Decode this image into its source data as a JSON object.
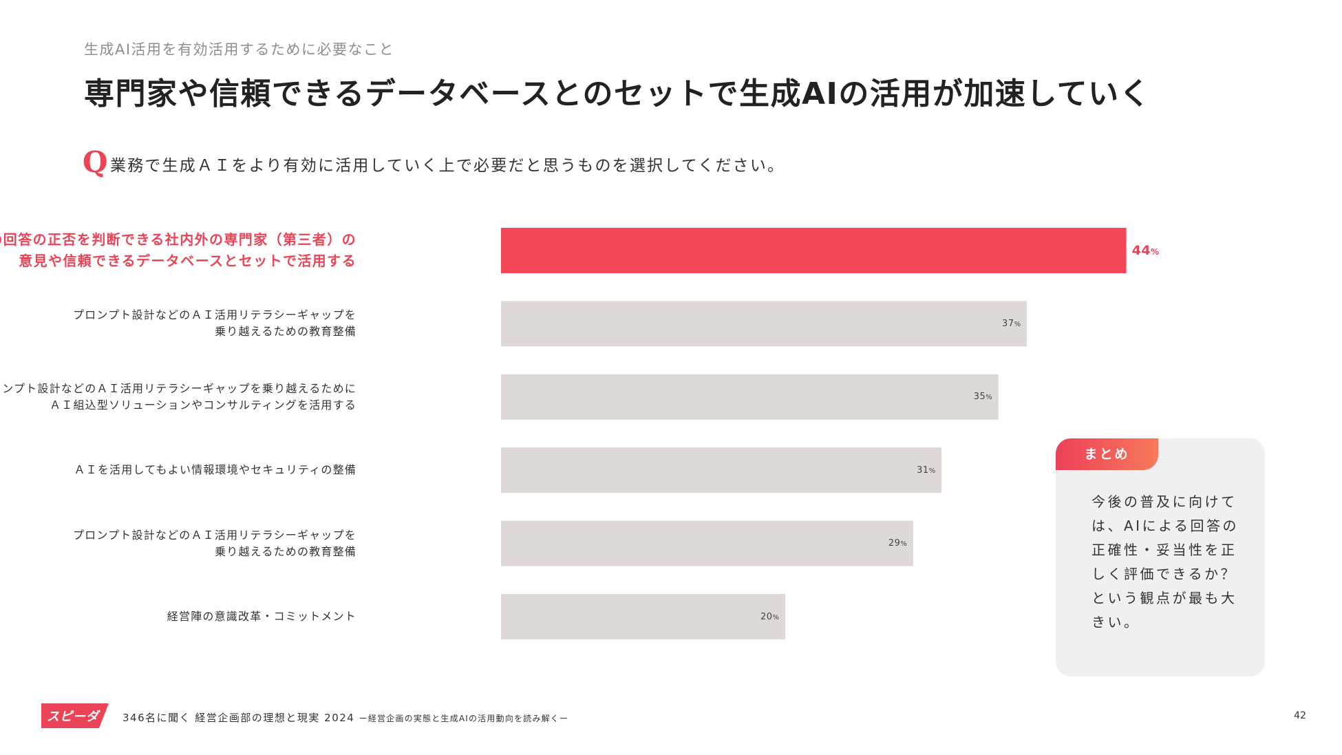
{
  "header": {
    "kicker": "生成AI活用を有効活用するために必要なこと",
    "title": "専門家や信頼できるデータベースとのセットで生成AIの活用が加速していく"
  },
  "question": {
    "mark": "Q",
    "text": "業務で生成ＡＩをより有効に活用していく上で必要だと思うものを選択してください。"
  },
  "chart_data": {
    "type": "bar",
    "orientation": "horizontal",
    "value_unit": "%",
    "highlight_index": 0,
    "colors": {
      "highlight": "#f44858",
      "default": "#ded9d7"
    },
    "xlim": [
      0,
      100
    ],
    "grid": false,
    "categories": [
      [
        "ＡＩの回答の正否を判断できる社内外の専門家（第三者）の",
        "意見や信頼できるデータベースとセットで活用する"
      ],
      [
        "プロンプト設計などのＡＩ活用リテラシーギャップを",
        "乗り越えるための教育整備"
      ],
      [
        "プロンプト設計などのＡＩ活用リテラシーギャップを乗り越えるために",
        "ＡＩ組込型ソリューションやコンサルティングを活用する"
      ],
      [
        "ＡＩを活用してもよい情報環境やセキュリティの整備"
      ],
      [
        "プロンプト設計などのＡＩ活用リテラシーギャップを",
        "乗り越えるための教育整備"
      ],
      [
        "経営陣の意識改革・コミットメント"
      ]
    ],
    "values": [
      44,
      37,
      35,
      31,
      29,
      20
    ]
  },
  "summary": {
    "label": "まとめ",
    "lines": [
      "今後の普及に向けて",
      "は、AIによる回答の",
      "正確性・妥当性を正",
      "しく評価できるか？",
      "という観点が最も大",
      "きい。"
    ]
  },
  "footer": {
    "logo": "スピーダ",
    "logo_color": "#ea4456",
    "title": "346名に聞く 経営企画部の理想と現実 2024",
    "subtitle": "ー経営企画の実態と生成AIの活用動向を読み解くー",
    "page": "42"
  }
}
